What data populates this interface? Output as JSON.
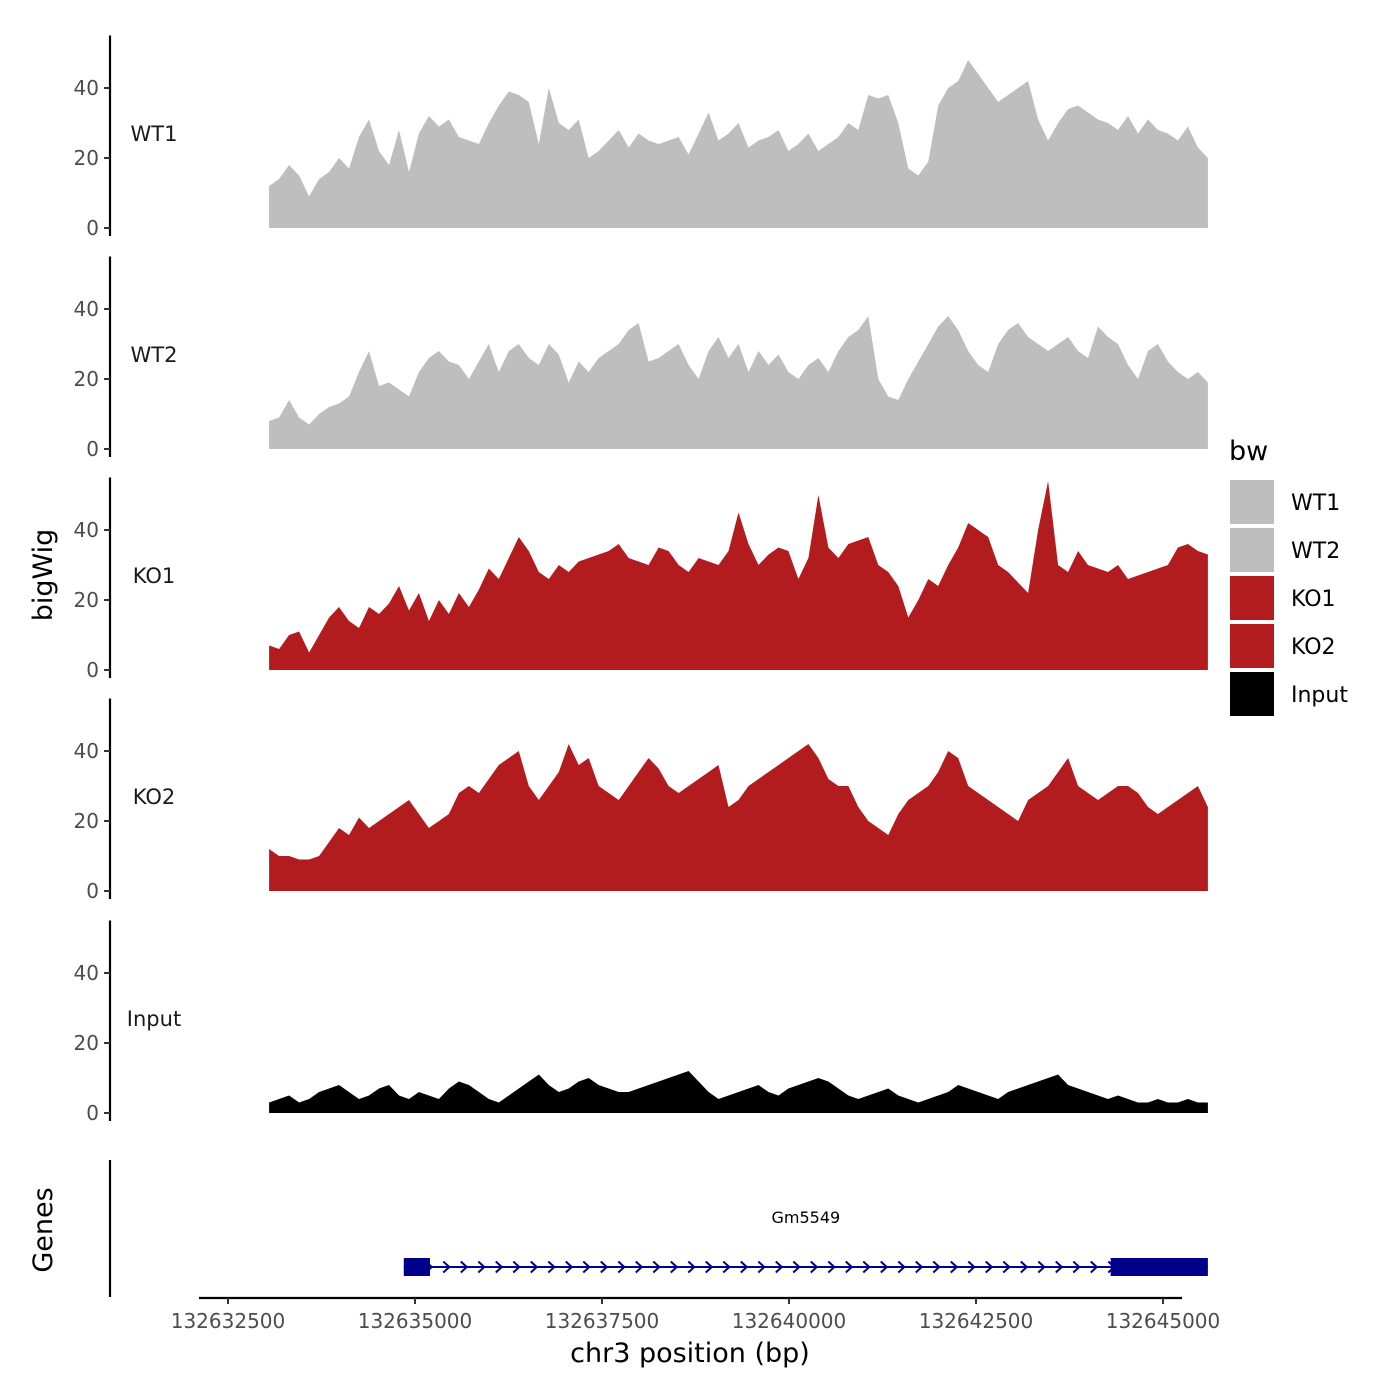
{
  "chart_data": {
    "type": "area",
    "x_label": "chr3 position (bp)",
    "y_label": "bigWig",
    "genes_label": "Genes",
    "x_range": [
      132632500,
      132645000
    ],
    "x_ticks": [
      {
        "value": 132632500,
        "label": "132632500"
      },
      {
        "value": 132635000,
        "label": "132635000"
      },
      {
        "value": 132637500,
        "label": "132637500"
      },
      {
        "value": 132640000,
        "label": "132640000"
      },
      {
        "value": 132642500,
        "label": "132642500"
      },
      {
        "value": 132645000,
        "label": "132645000"
      }
    ],
    "y_range": [
      0,
      55
    ],
    "y_ticks": [
      {
        "value": 0,
        "label": "0"
      },
      {
        "value": 20,
        "label": "20"
      },
      {
        "value": 40,
        "label": "40"
      }
    ],
    "legend": {
      "title": "bw",
      "entries": [
        {
          "name": "WT1",
          "color": "#bebebe"
        },
        {
          "name": "WT2",
          "color": "#bebebe"
        },
        {
          "name": "KO1",
          "color": "#b21c1f"
        },
        {
          "name": "KO2",
          "color": "#b21c1f"
        },
        {
          "name": "Input",
          "color": "#000000"
        }
      ]
    },
    "series": [
      {
        "name": "WT1",
        "color": "#bebebe",
        "x_start": 132633050,
        "x_end": 132645600,
        "values": [
          12,
          14,
          18,
          15,
          9,
          14,
          16,
          20,
          17,
          26,
          31,
          22,
          18,
          28,
          16,
          27,
          32,
          29,
          31,
          26,
          25,
          24,
          30,
          35,
          39,
          38,
          36,
          24,
          40,
          30,
          28,
          31,
          20,
          22,
          25,
          28,
          23,
          27,
          25,
          24,
          25,
          26,
          21,
          27,
          33,
          25,
          27,
          30,
          23,
          25,
          26,
          28,
          22,
          24,
          27,
          22,
          24,
          26,
          30,
          28,
          38,
          37,
          38,
          30,
          17,
          15,
          19,
          35,
          40,
          42,
          48,
          44,
          40,
          36,
          38,
          40,
          42,
          31,
          25,
          30,
          34,
          35,
          33,
          31,
          30,
          28,
          32,
          27,
          31,
          28,
          27,
          25,
          29,
          23,
          20
        ]
      },
      {
        "name": "WT2",
        "color": "#bebebe",
        "x_start": 132633050,
        "x_end": 132645600,
        "values": [
          8,
          9,
          14,
          9,
          7,
          10,
          12,
          13,
          15,
          22,
          28,
          18,
          19,
          17,
          15,
          22,
          26,
          28,
          25,
          24,
          20,
          25,
          30,
          22,
          28,
          30,
          26,
          24,
          30,
          27,
          19,
          25,
          22,
          26,
          28,
          30,
          34,
          36,
          25,
          26,
          28,
          30,
          24,
          20,
          28,
          32,
          26,
          30,
          22,
          28,
          24,
          27,
          22,
          20,
          24,
          26,
          22,
          28,
          32,
          34,
          38,
          20,
          15,
          14,
          20,
          25,
          30,
          35,
          38,
          34,
          28,
          24,
          22,
          30,
          34,
          36,
          32,
          30,
          28,
          30,
          32,
          28,
          26,
          35,
          32,
          30,
          24,
          20,
          28,
          30,
          25,
          22,
          20,
          22,
          19
        ]
      },
      {
        "name": "KO1",
        "color": "#b21c1f",
        "x_start": 132633050,
        "x_end": 132645600,
        "values": [
          7,
          6,
          10,
          11,
          5,
          10,
          15,
          18,
          14,
          12,
          18,
          16,
          19,
          24,
          17,
          22,
          14,
          20,
          16,
          22,
          18,
          23,
          29,
          26,
          32,
          38,
          34,
          28,
          26,
          30,
          28,
          31,
          32,
          33,
          34,
          36,
          32,
          31,
          30,
          35,
          34,
          30,
          28,
          32,
          31,
          30,
          34,
          45,
          36,
          30,
          33,
          35,
          34,
          26,
          32,
          50,
          35,
          32,
          36,
          37,
          38,
          30,
          28,
          24,
          15,
          20,
          26,
          24,
          30,
          35,
          42,
          40,
          38,
          30,
          28,
          25,
          22,
          40,
          54,
          30,
          28,
          34,
          30,
          29,
          28,
          30,
          26,
          27,
          28,
          29,
          30,
          35,
          36,
          34,
          33
        ]
      },
      {
        "name": "KO2",
        "color": "#b21c1f",
        "x_start": 132633050,
        "x_end": 132645600,
        "values": [
          12,
          10,
          10,
          9,
          9,
          10,
          14,
          18,
          16,
          21,
          18,
          20,
          22,
          24,
          26,
          22,
          18,
          20,
          22,
          28,
          30,
          28,
          32,
          36,
          38,
          40,
          30,
          26,
          30,
          34,
          42,
          36,
          38,
          30,
          28,
          26,
          30,
          34,
          38,
          35,
          30,
          28,
          30,
          32,
          34,
          36,
          24,
          26,
          30,
          32,
          34,
          36,
          38,
          40,
          42,
          38,
          32,
          30,
          30,
          24,
          20,
          18,
          16,
          22,
          26,
          28,
          30,
          34,
          40,
          38,
          30,
          28,
          26,
          24,
          22,
          20,
          26,
          28,
          30,
          34,
          38,
          30,
          28,
          26,
          28,
          30,
          30,
          28,
          24,
          22,
          24,
          26,
          28,
          30,
          24
        ]
      },
      {
        "name": "Input",
        "color": "#000000",
        "x_start": 132633050,
        "x_end": 132645600,
        "values": [
          3,
          4,
          5,
          3,
          4,
          6,
          7,
          8,
          6,
          4,
          5,
          7,
          8,
          5,
          4,
          6,
          5,
          4,
          7,
          9,
          8,
          6,
          4,
          3,
          5,
          7,
          9,
          11,
          8,
          6,
          7,
          9,
          10,
          8,
          7,
          6,
          6,
          7,
          8,
          9,
          10,
          11,
          12,
          9,
          6,
          4,
          5,
          6,
          7,
          8,
          6,
          5,
          7,
          8,
          9,
          10,
          9,
          7,
          5,
          4,
          5,
          6,
          7,
          5,
          4,
          3,
          4,
          5,
          6,
          8,
          7,
          6,
          5,
          4,
          6,
          7,
          8,
          9,
          10,
          11,
          8,
          7,
          6,
          5,
          4,
          5,
          4,
          3,
          3,
          4,
          3,
          3,
          4,
          3,
          3
        ]
      }
    ],
    "genes": [
      {
        "name": "Gm5549",
        "strand": "+",
        "start": 132634850,
        "end": 132645600,
        "exons": [
          {
            "start": 132634850,
            "end": 132635200
          },
          {
            "start": 132644300,
            "end": 132645600
          }
        ]
      }
    ]
  }
}
